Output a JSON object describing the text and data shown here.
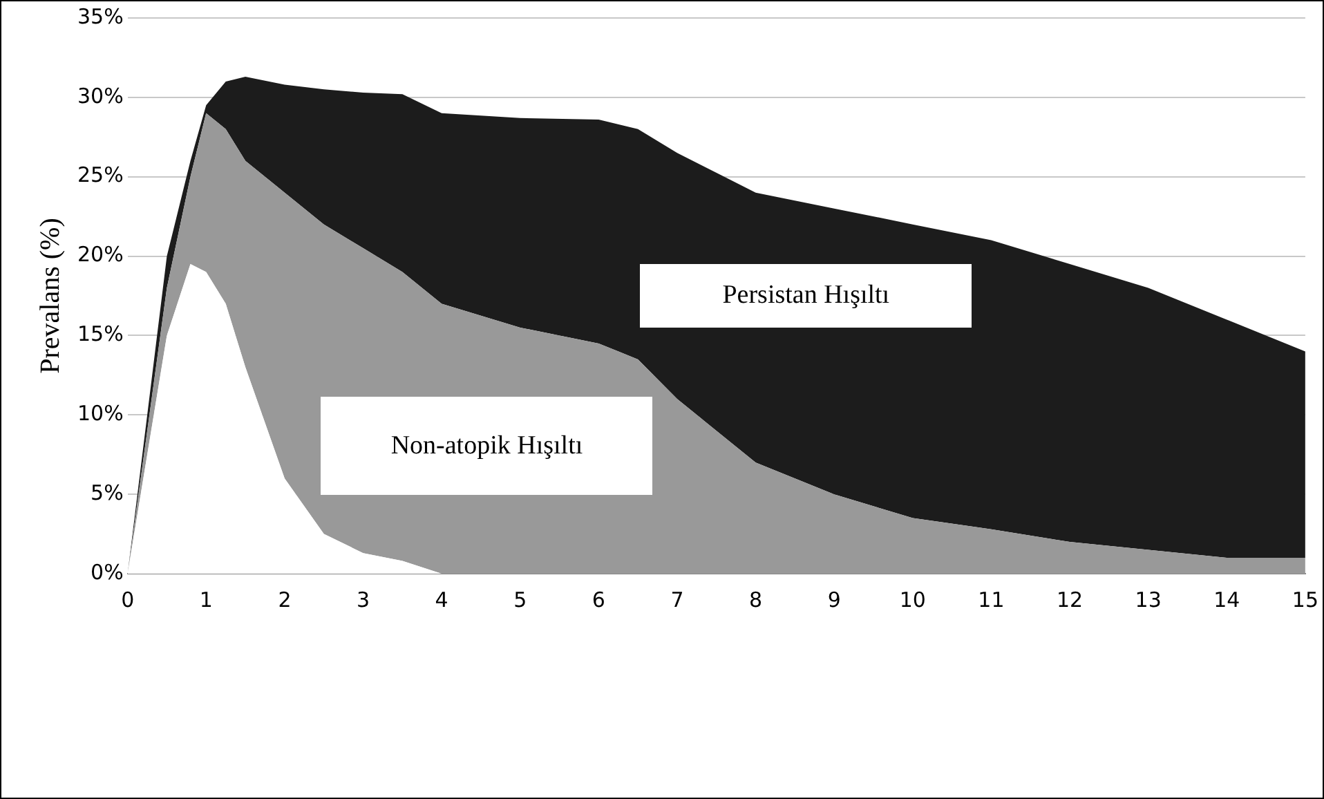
{
  "chart_data": {
    "type": "area",
    "stacked": true,
    "ylabel": "Prevalans (%)",
    "x": [
      0,
      0.5,
      0.8,
      1,
      1.25,
      1.5,
      2,
      2.5,
      3,
      3.5,
      4,
      5,
      6,
      6.5,
      7,
      8,
      9,
      10,
      11,
      12,
      13,
      14,
      15
    ],
    "series": [
      {
        "color": "#ffffff",
        "values": [
          0,
          15,
          19.5,
          19,
          17,
          13,
          6,
          2.5,
          1.3,
          0.8,
          0,
          0,
          0,
          0,
          0,
          0,
          0,
          0,
          0,
          0,
          0,
          0,
          0
        ]
      },
      {
        "color": "#999999",
        "values": [
          0,
          3,
          5.5,
          10,
          11,
          13,
          18,
          19.5,
          19.2,
          18.2,
          17,
          15.5,
          14.5,
          13.5,
          11,
          7,
          5,
          3.5,
          2.8,
          2,
          1.5,
          1,
          1
        ]
      },
      {
        "color": "#1c1c1c",
        "values": [
          0,
          2,
          1,
          0.5,
          3,
          5.3,
          6.8,
          8.5,
          9.8,
          11.2,
          12,
          13.2,
          14.1,
          14.5,
          15.5,
          17,
          18,
          18.5,
          18.2,
          17.5,
          16.5,
          15,
          13
        ]
      }
    ],
    "xlim": [
      0,
      15
    ],
    "xticks": [
      0,
      1,
      2,
      3,
      4,
      5,
      6,
      7,
      8,
      9,
      10,
      11,
      12,
      13,
      14,
      15
    ],
    "ylim": [
      0,
      35
    ],
    "yticks": [
      {
        "value": 0,
        "label": "0%"
      },
      {
        "value": 5,
        "label": "5%"
      },
      {
        "value": 10,
        "label": "10%"
      },
      {
        "value": 15,
        "label": "15%"
      },
      {
        "value": 20,
        "label": "20%"
      },
      {
        "value": 25,
        "label": "25%"
      },
      {
        "value": 30,
        "label": "30%"
      },
      {
        "value": 35,
        "label": "35%"
      }
    ],
    "grid": "y",
    "legend": false,
    "annotations": [
      "Persistan Hışıltı",
      "Non-atopik Hışıltı"
    ]
  }
}
